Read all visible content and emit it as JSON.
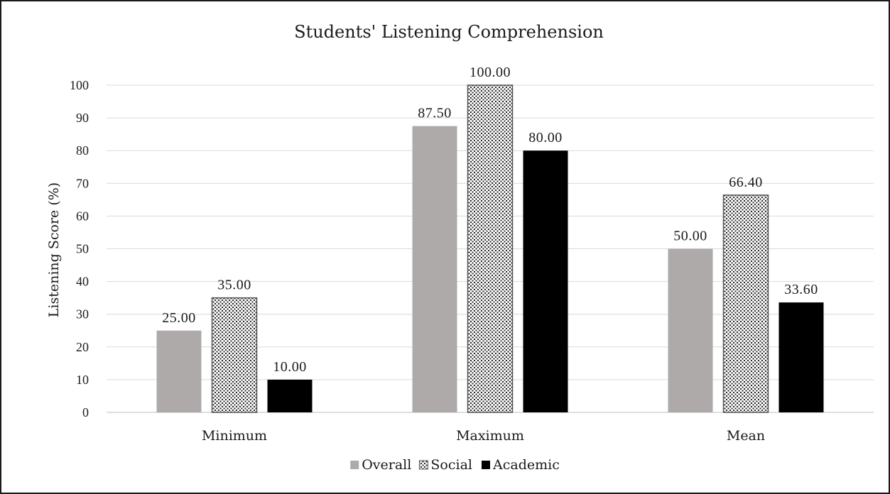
{
  "chart_data": {
    "type": "bar",
    "title": "Students' Listening Comprehension",
    "xlabel": "",
    "ylabel": "Listening Score (%)",
    "categories": [
      "Minimum",
      "Maximum",
      "Mean"
    ],
    "ylim": [
      0,
      100
    ],
    "yticks": [
      0,
      10,
      20,
      30,
      40,
      50,
      60,
      70,
      80,
      90,
      100
    ],
    "grid": true,
    "legend_position": "bottom",
    "series": [
      {
        "name": "Overall",
        "values": [
          25.0,
          87.5,
          50.0
        ],
        "labels": [
          "25.00",
          "87.50",
          "50.00"
        ],
        "color": "#aeaaaa",
        "pattern": "solid"
      },
      {
        "name": "Social",
        "values": [
          35.0,
          100.0,
          66.4
        ],
        "labels": [
          "35.00",
          "100.00",
          "66.40"
        ],
        "color": "#ffffff",
        "pattern": "dotted"
      },
      {
        "name": "Academic",
        "values": [
          10.0,
          80.0,
          33.6
        ],
        "labels": [
          "10.00",
          "80.00",
          "33.60"
        ],
        "color": "#000000",
        "pattern": "solid"
      }
    ]
  }
}
